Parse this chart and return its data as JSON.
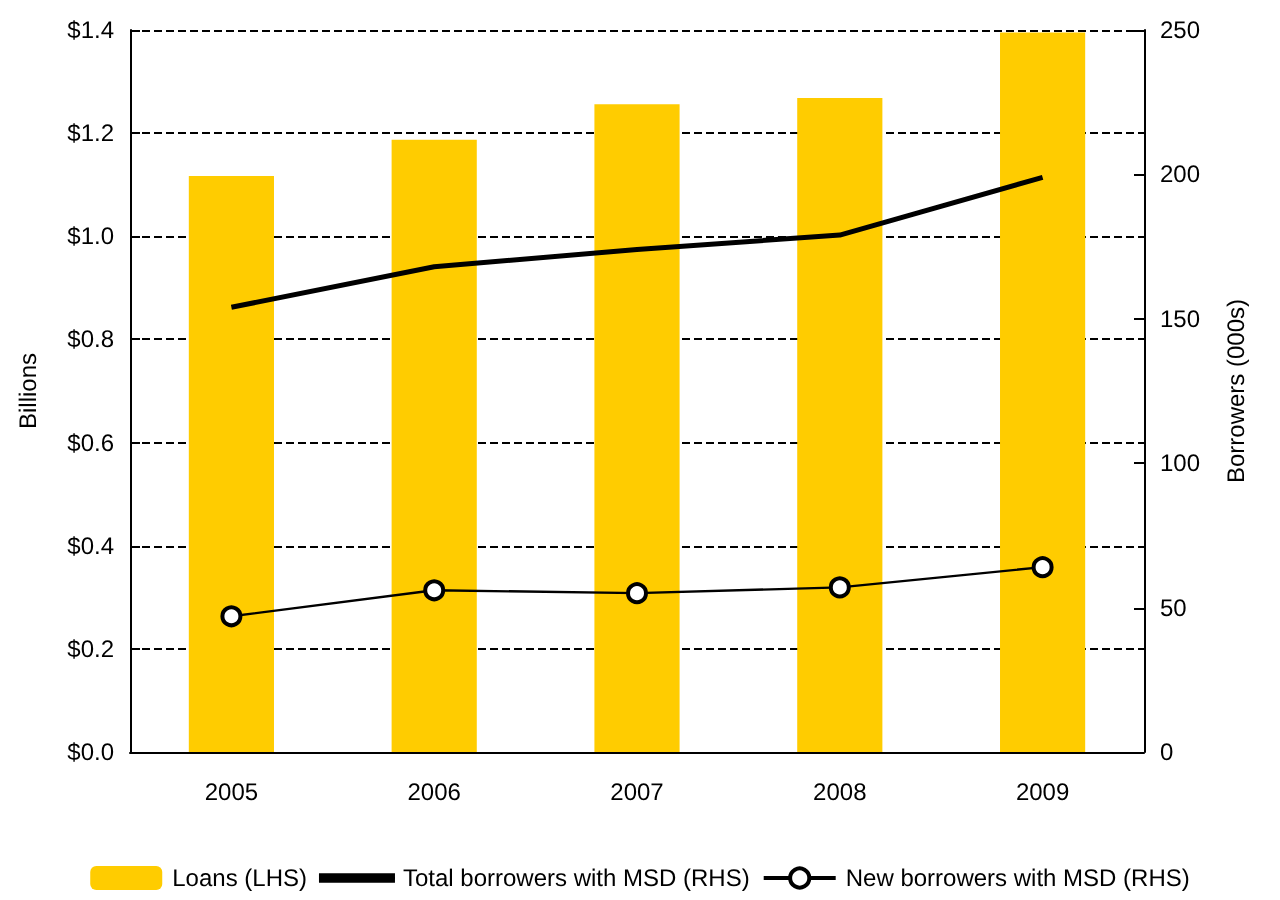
{
  "chart_data": {
    "type": "bar",
    "categories": [
      "2005",
      "2006",
      "2007",
      "2008",
      "2009"
    ],
    "series": [
      {
        "name": "Loans (LHS)",
        "color": "#ffcc00",
        "values": [
          1.117,
          1.187,
          1.256,
          1.268,
          1.395
        ]
      },
      {
        "name": "Total borrowers with MSD (RHS)",
        "type": "line",
        "axis": "y2",
        "color": "#000000",
        "marker": "none",
        "values": [
          154,
          168,
          174,
          179,
          199
        ]
      },
      {
        "name": "New borrowers with MSD (RHS)",
        "type": "line",
        "axis": "y2",
        "color": "#000000",
        "marker": "circle",
        "values": [
          47,
          56,
          55,
          57,
          64
        ]
      }
    ],
    "ylabel": "Billions",
    "y2label": "Borrowers (000s)",
    "ylim": [
      0,
      1.4
    ],
    "yticks": [
      {
        "value": 0,
        "label": "$0.0"
      },
      {
        "value": 0.2,
        "label": "$0.2"
      },
      {
        "value": 0.4,
        "label": "$0.4"
      },
      {
        "value": 0.6,
        "label": "$0.6"
      },
      {
        "value": 0.8,
        "label": "$0.8"
      },
      {
        "value": 1.0,
        "label": "$1.0"
      },
      {
        "value": 1.2,
        "label": "$1.2"
      },
      {
        "value": 1.4,
        "label": "$1.4"
      }
    ],
    "y2lim": [
      0,
      250
    ],
    "y2ticks": [
      0,
      50,
      100,
      150,
      200,
      250
    ],
    "grid": "y",
    "legend": "bottom"
  }
}
